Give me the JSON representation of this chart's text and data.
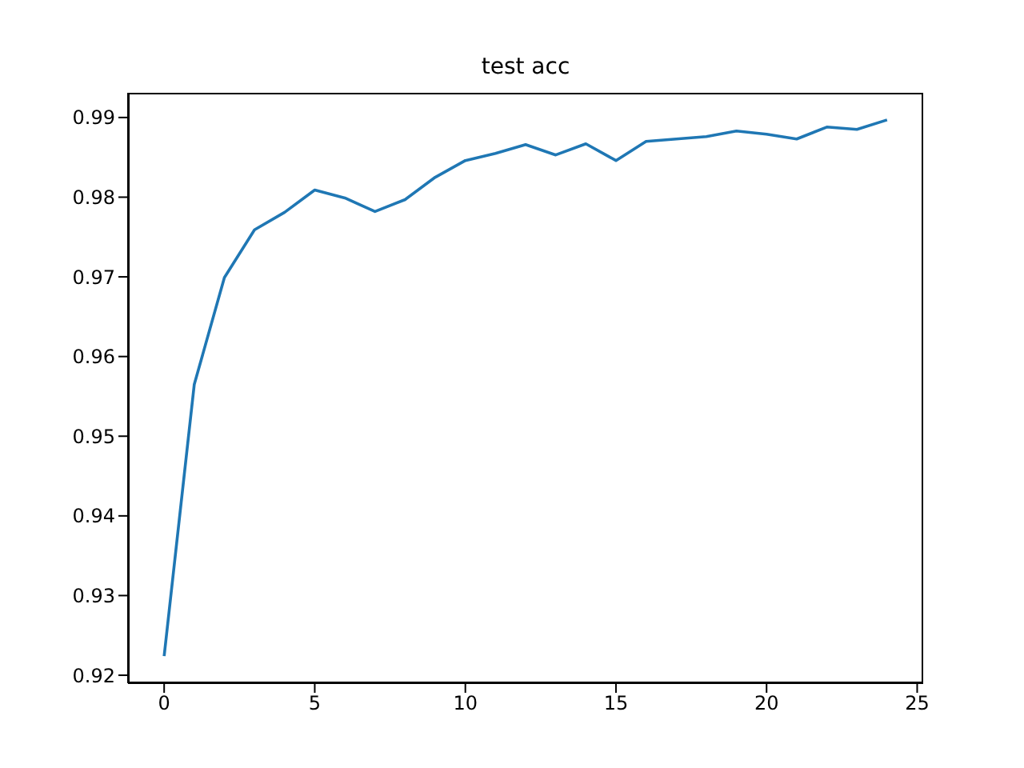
{
  "chart_data": {
    "type": "line",
    "title": "test acc",
    "x": [
      0,
      1,
      2,
      3,
      4,
      5,
      6,
      7,
      8,
      9,
      10,
      11,
      12,
      13,
      14,
      15,
      16,
      17,
      18,
      19,
      20,
      21,
      22,
      23,
      24
    ],
    "series": [
      {
        "color": "#1f77b4",
        "values": [
          0.9224,
          0.9565,
          0.9699,
          0.9759,
          0.9781,
          0.9809,
          0.9799,
          0.9782,
          0.9797,
          0.9825,
          0.9846,
          0.9855,
          0.9866,
          0.9853,
          0.9867,
          0.9846,
          0.987,
          0.9873,
          0.9876,
          0.9883,
          0.9879,
          0.9873,
          0.9888,
          0.9885,
          0.9897
        ]
      }
    ],
    "xlim": [
      -1.2,
      25.2
    ],
    "xticks": [
      0,
      5,
      10,
      15,
      20,
      25
    ],
    "ylim": [
      0.919,
      0.9931
    ],
    "yticks": [
      0.92,
      0.93,
      0.94,
      0.95,
      0.96,
      0.97,
      0.98,
      0.99
    ],
    "grid": false,
    "legend": false,
    "marker": "none",
    "line_style": "solid"
  }
}
